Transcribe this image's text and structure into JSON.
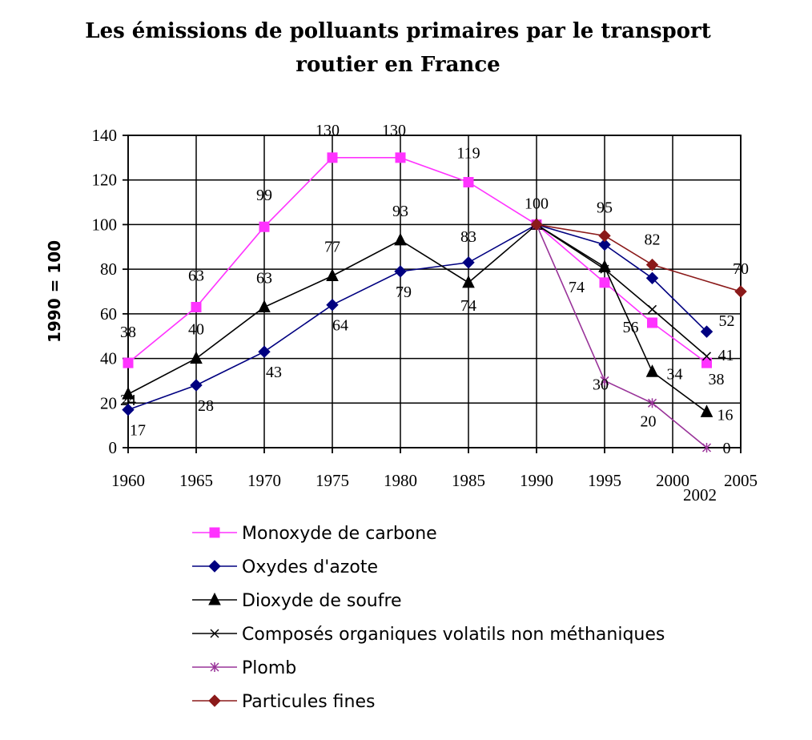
{
  "chart_data": {
    "type": "line",
    "title_line1": "Les émissions de polluants primaires par le transport",
    "title_line2": "routier en France",
    "ylabel": "1990 = 100",
    "ylim": [
      0,
      140
    ],
    "yticks": [
      0,
      20,
      40,
      60,
      80,
      100,
      120,
      140
    ],
    "xlim": [
      1960,
      2005
    ],
    "xticks": [
      1960,
      1965,
      1970,
      1975,
      1980,
      1985,
      1990,
      1995,
      2000,
      2005
    ],
    "extra_xtick": 2002,
    "grid": true,
    "legend_position": "bottom",
    "series": [
      {
        "name": "Monoxyde de carbone",
        "color": "#ff33ff",
        "marker": "square",
        "x": [
          1960,
          1965,
          1970,
          1975,
          1980,
          1985,
          1990,
          1995,
          1998.5,
          2002.5
        ],
        "values": [
          38,
          63,
          99,
          130,
          130,
          119,
          100,
          74,
          56,
          38
        ],
        "labels": [
          "38",
          "63",
          "99",
          "130",
          "130",
          "119",
          "100",
          "74",
          "56",
          "38"
        ]
      },
      {
        "name": "Oxydes d'azote",
        "color": "#000080",
        "marker": "diamond",
        "x": [
          1960,
          1965,
          1970,
          1975,
          1980,
          1985,
          1990,
          1995,
          1998.5,
          2002.5
        ],
        "values": [
          17,
          28,
          43,
          64,
          79,
          83,
          100,
          91,
          76,
          52
        ],
        "labels": [
          "17",
          "28",
          "43",
          "64",
          "79",
          "83",
          "",
          "",
          "",
          "52"
        ]
      },
      {
        "name": "Dioxyde de soufre",
        "color": "#000000",
        "marker": "triangle",
        "x": [
          1960,
          1965,
          1970,
          1975,
          1980,
          1985,
          1990,
          1995,
          1998.5,
          2002.5
        ],
        "values": [
          24,
          40,
          63,
          77,
          93,
          74,
          100,
          81,
          34,
          16
        ],
        "labels": [
          "24",
          "40",
          "63",
          "77",
          "93",
          "74",
          "",
          "",
          "34",
          "16"
        ]
      },
      {
        "name": "Composés organiques volatils non méthaniques",
        "color": "#000000",
        "marker": "x",
        "x": [
          1990,
          1995,
          1998.5,
          2002.5
        ],
        "values": [
          100,
          80,
          62,
          41
        ],
        "labels": [
          "",
          "",
          "",
          "41"
        ]
      },
      {
        "name": "Plomb",
        "color": "#993399",
        "marker": "star",
        "x": [
          1990,
          1995,
          1998.5,
          2002.5
        ],
        "values": [
          100,
          30,
          20,
          0
        ],
        "labels": [
          "",
          "30",
          "20",
          "0"
        ]
      },
      {
        "name": "Particules fines",
        "color": "#8b1a1a",
        "marker": "diamond",
        "x": [
          1990,
          1995,
          1998.5,
          2005
        ],
        "values": [
          100,
          95,
          82,
          70
        ],
        "labels": [
          "",
          "95",
          "82",
          "70"
        ]
      }
    ]
  }
}
